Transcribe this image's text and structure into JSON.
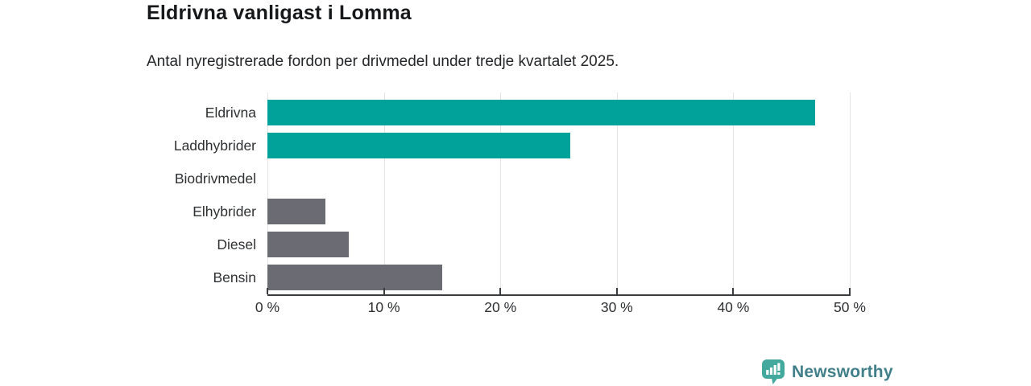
{
  "header": {
    "title": "Eldrivna vanligast i Lomma",
    "subtitle": "Antal nyregistrerade fordon per drivmedel under tredje kvartalet 2025."
  },
  "chart_data": {
    "type": "bar",
    "orientation": "horizontal",
    "title": "Eldrivna vanligast i Lomma",
    "subtitle": "Antal nyregistrerade fordon per drivmedel under tredje kvartalet 2025.",
    "categories": [
      "Eldrivna",
      "Laddhybrider",
      "Biodrivmedel",
      "Elhybrider",
      "Diesel",
      "Bensin"
    ],
    "values": [
      47,
      26,
      0,
      5,
      7,
      15
    ],
    "unit": "%",
    "xlim": [
      0,
      50
    ],
    "x_ticks": [
      {
        "value": 0,
        "label": "0 %"
      },
      {
        "value": 10,
        "label": "10 %"
      },
      {
        "value": 20,
        "label": "20 %"
      },
      {
        "value": 30,
        "label": "30 %"
      },
      {
        "value": 40,
        "label": "40 %"
      },
      {
        "value": 50,
        "label": "50 %"
      }
    ],
    "xlabel": "",
    "ylabel": "",
    "grid": true,
    "legend": false,
    "highlight_color": "#00a29a",
    "default_color": "#6b6b73",
    "bar_colors": [
      "#00a29a",
      "#00a29a",
      "#6b6b73",
      "#6b6b73",
      "#6b6b73",
      "#6b6b73"
    ]
  },
  "footer": {
    "brand_label": "Newsworthy",
    "brand_text_color": "#41808a",
    "brand_icon_color": "#43a99e"
  }
}
